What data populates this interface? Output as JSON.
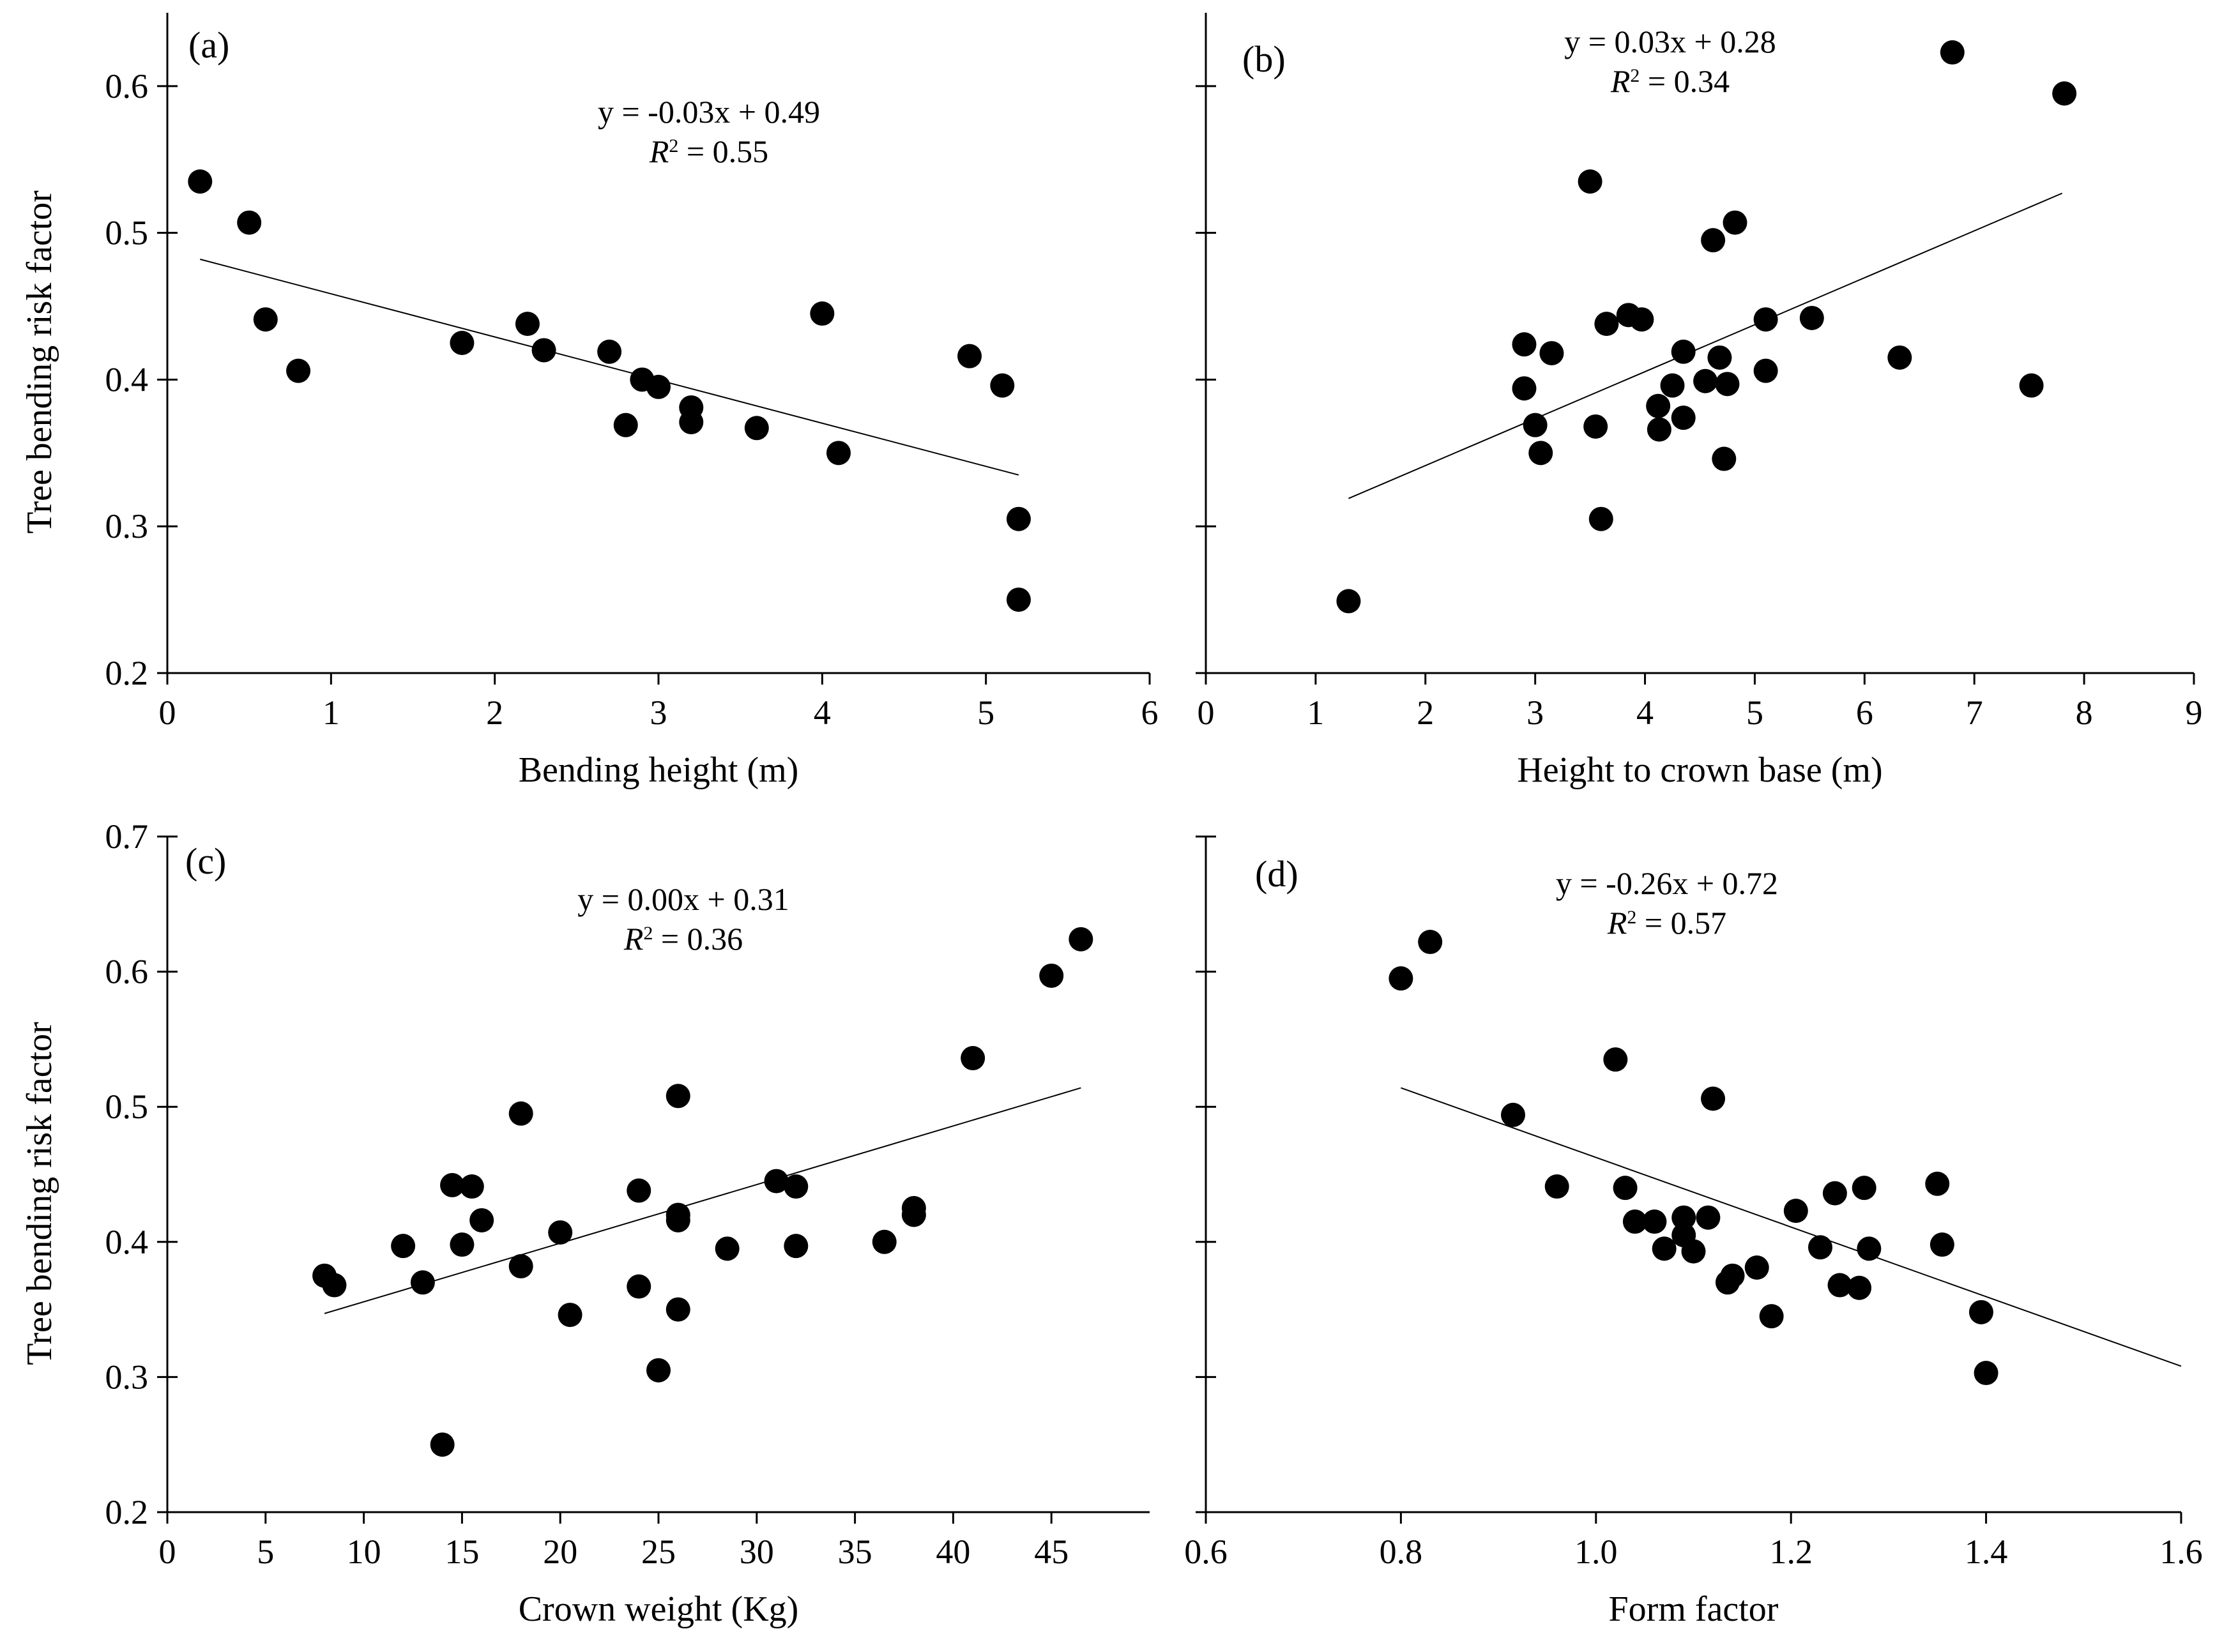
{
  "chart_data": [
    {
      "type": "scatter",
      "panel_label": "(a)",
      "xlabel": "Bending height (m)",
      "ylabel": "Tree bending risk factor",
      "xlim": [
        0,
        6
      ],
      "ylim": [
        0.2,
        0.65
      ],
      "xticks": [
        0,
        1,
        2,
        3,
        4,
        5,
        6
      ],
      "yticks": [
        0.2,
        0.3,
        0.4,
        0.5,
        0.6
      ],
      "x_tick_labels": [
        "0",
        "1",
        "2",
        "3",
        "4",
        "5",
        "6"
      ],
      "y_tick_labels": [
        "0.2",
        "0.3",
        "0.4",
        "0.5",
        "0.6"
      ],
      "equation": "y = -0.03x + 0.49",
      "r2_label": "R",
      "r2_sup": "2",
      "r2_value": " = 0.55",
      "trendline": {
        "x": [
          0.2,
          5.2
        ],
        "y": [
          0.482,
          0.335
        ]
      },
      "points": [
        [
          0.2,
          0.535
        ],
        [
          0.5,
          0.507
        ],
        [
          0.6,
          0.441
        ],
        [
          0.8,
          0.406
        ],
        [
          1.8,
          0.425
        ],
        [
          2.2,
          0.438
        ],
        [
          2.3,
          0.42
        ],
        [
          2.7,
          0.419
        ],
        [
          2.8,
          0.369
        ],
        [
          2.9,
          0.4
        ],
        [
          3.0,
          0.395
        ],
        [
          3.2,
          0.381
        ],
        [
          3.2,
          0.371
        ],
        [
          3.6,
          0.367
        ],
        [
          4.0,
          0.445
        ],
        [
          4.1,
          0.35
        ],
        [
          4.9,
          0.416
        ],
        [
          5.1,
          0.396
        ],
        [
          5.2,
          0.305
        ],
        [
          5.2,
          0.25
        ]
      ]
    },
    {
      "type": "scatter",
      "panel_label": "(b)",
      "xlabel": "Height to crown base (m)",
      "ylabel": "",
      "xlim": [
        0,
        9
      ],
      "ylim": [
        0.2,
        0.65
      ],
      "xticks": [
        0,
        1,
        2,
        3,
        4,
        5,
        6,
        7,
        8,
        9
      ],
      "yticks": [
        0.2,
        0.3,
        0.4,
        0.5,
        0.6
      ],
      "x_tick_labels": [
        "0",
        "1",
        "2",
        "3",
        "4",
        "5",
        "6",
        "7",
        "8",
        "9"
      ],
      "y_tick_labels": [],
      "equation": "y = 0.03x + 0.28",
      "r2_label": "R",
      "r2_sup": "2",
      "r2_value": " = 0.34",
      "trendline": {
        "x": [
          1.3,
          7.8
        ],
        "y": [
          0.319,
          0.527
        ]
      },
      "points": [
        [
          1.3,
          0.249
        ],
        [
          2.9,
          0.424
        ],
        [
          2.9,
          0.394
        ],
        [
          3.0,
          0.369
        ],
        [
          3.05,
          0.35
        ],
        [
          3.15,
          0.418
        ],
        [
          3.5,
          0.535
        ],
        [
          3.55,
          0.368
        ],
        [
          3.6,
          0.305
        ],
        [
          3.65,
          0.438
        ],
        [
          3.85,
          0.444
        ],
        [
          3.97,
          0.441
        ],
        [
          4.12,
          0.382
        ],
        [
          4.13,
          0.366
        ],
        [
          4.25,
          0.396
        ],
        [
          4.35,
          0.419
        ],
        [
          4.35,
          0.374
        ],
        [
          4.55,
          0.399
        ],
        [
          4.62,
          0.495
        ],
        [
          4.68,
          0.415
        ],
        [
          4.72,
          0.346
        ],
        [
          4.75,
          0.397
        ],
        [
          4.82,
          0.507
        ],
        [
          5.1,
          0.441
        ],
        [
          5.1,
          0.406
        ],
        [
          5.52,
          0.442
        ],
        [
          6.32,
          0.415
        ],
        [
          6.8,
          0.623
        ],
        [
          7.52,
          0.396
        ],
        [
          7.82,
          0.595
        ]
      ]
    },
    {
      "type": "scatter",
      "panel_label": "(c)",
      "xlabel": "Crown weight (Kg)",
      "ylabel": "Tree bending risk factor",
      "xlim": [
        0,
        50
      ],
      "ylim": [
        0.2,
        0.7
      ],
      "xticks": [
        0,
        5,
        10,
        15,
        20,
        25,
        30,
        35,
        40,
        45
      ],
      "yticks": [
        0.2,
        0.3,
        0.4,
        0.5,
        0.6,
        0.7
      ],
      "x_tick_labels": [
        "0",
        "5",
        "10",
        "15",
        "20",
        "25",
        "30",
        "35",
        "40",
        "45"
      ],
      "y_tick_labels": [
        "0.2",
        "0.3",
        "0.4",
        "0.5",
        "0.6",
        "0.7"
      ],
      "equation": "y = 0.00x + 0.31",
      "r2_label": "R",
      "r2_sup": "2",
      "r2_value": " = 0.36",
      "trendline": {
        "x": [
          8.0,
          46.5
        ],
        "y": [
          0.347,
          0.514
        ]
      },
      "points": [
        [
          8.0,
          0.375
        ],
        [
          8.5,
          0.368
        ],
        [
          12.0,
          0.397
        ],
        [
          13.0,
          0.37
        ],
        [
          14.0,
          0.25
        ],
        [
          14.5,
          0.442
        ],
        [
          15.0,
          0.398
        ],
        [
          15.5,
          0.441
        ],
        [
          16.0,
          0.416
        ],
        [
          18.0,
          0.495
        ],
        [
          18.0,
          0.382
        ],
        [
          20.0,
          0.407
        ],
        [
          20.5,
          0.346
        ],
        [
          24.0,
          0.438
        ],
        [
          24.0,
          0.367
        ],
        [
          25.0,
          0.305
        ],
        [
          26.0,
          0.508
        ],
        [
          26.0,
          0.42
        ],
        [
          26.0,
          0.416
        ],
        [
          26.0,
          0.35
        ],
        [
          28.5,
          0.395
        ],
        [
          31.0,
          0.445
        ],
        [
          32.0,
          0.441
        ],
        [
          32.0,
          0.397
        ],
        [
          36.5,
          0.4
        ],
        [
          38.0,
          0.425
        ],
        [
          38.0,
          0.42
        ],
        [
          41.0,
          0.536
        ],
        [
          45.0,
          0.597
        ],
        [
          46.5,
          0.624
        ]
      ]
    },
    {
      "type": "scatter",
      "panel_label": "(d)",
      "xlabel": "Form factor",
      "ylabel": "",
      "xlim": [
        0.6,
        1.6
      ],
      "ylim": [
        0.2,
        0.7
      ],
      "xticks": [
        0.6,
        0.8,
        1.0,
        1.2,
        1.4,
        1.6
      ],
      "yticks": [
        0.2,
        0.3,
        0.4,
        0.5,
        0.6,
        0.7
      ],
      "x_tick_labels": [
        "0.6",
        "0.8",
        "1.0",
        "1.2",
        "1.4",
        "1.6"
      ],
      "y_tick_labels": [],
      "equation": "y = -0.26x + 0.72",
      "r2_label": "R",
      "r2_sup": "2",
      "r2_value": " = 0.57",
      "trendline": {
        "x": [
          0.8,
          1.6
        ],
        "y": [
          0.514,
          0.308
        ]
      },
      "points": [
        [
          0.8,
          0.595
        ],
        [
          0.83,
          0.622
        ],
        [
          0.915,
          0.494
        ],
        [
          0.96,
          0.441
        ],
        [
          1.02,
          0.535
        ],
        [
          1.03,
          0.44
        ],
        [
          1.04,
          0.415
        ],
        [
          1.06,
          0.415
        ],
        [
          1.07,
          0.395
        ],
        [
          1.09,
          0.418
        ],
        [
          1.09,
          0.405
        ],
        [
          1.1,
          0.393
        ],
        [
          1.115,
          0.418
        ],
        [
          1.12,
          0.506
        ],
        [
          1.135,
          0.37
        ],
        [
          1.14,
          0.375
        ],
        [
          1.165,
          0.381
        ],
        [
          1.18,
          0.345
        ],
        [
          1.205,
          0.423
        ],
        [
          1.23,
          0.396
        ],
        [
          1.245,
          0.436
        ],
        [
          1.25,
          0.368
        ],
        [
          1.27,
          0.366
        ],
        [
          1.275,
          0.44
        ],
        [
          1.28,
          0.395
        ],
        [
          1.35,
          0.443
        ],
        [
          1.355,
          0.398
        ],
        [
          1.395,
          0.348
        ],
        [
          1.4,
          0.303
        ]
      ]
    }
  ]
}
